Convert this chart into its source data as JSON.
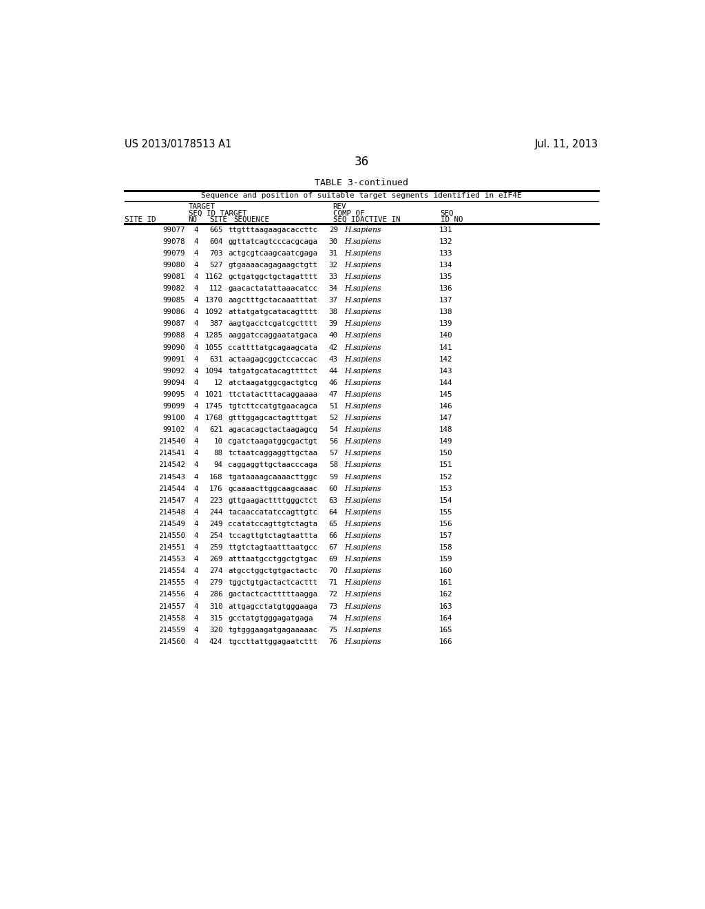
{
  "header_left": "US 2013/0178513 A1",
  "header_right": "Jul. 11, 2013",
  "page_number": "36",
  "table_title": "TABLE 3-continued",
  "table_subtitle": "Sequence and position of suitable target segments identified in eIF4E",
  "rows": [
    [
      "99077",
      "4",
      "665",
      "ttgtttaagaagacaccttc",
      "29",
      "H.",
      "sapiens",
      "131"
    ],
    [
      "99078",
      "4",
      "604",
      "ggttatcagtcccacgcaga",
      "30",
      "H.",
      "sapiens",
      "132"
    ],
    [
      "99079",
      "4",
      "703",
      "actgcgtcaagcaatcgaga",
      "31",
      "H.",
      "sapiens",
      "133"
    ],
    [
      "99080",
      "4",
      "527",
      "gtgaaaacagagaagctgtt",
      "32",
      "H.",
      "sapiens",
      "134"
    ],
    [
      "99081",
      "4",
      "1162",
      "gctgatggctgctagatttt",
      "33",
      "H.",
      "sapiens",
      "135"
    ],
    [
      "99082",
      "4",
      "112",
      "gaacactatattaaacatcc",
      "34",
      "H.",
      "sapiens",
      "136"
    ],
    [
      "99085",
      "4",
      "1370",
      "aagctttgctacaaatttat",
      "37",
      "H.",
      "sapiens",
      "137"
    ],
    [
      "99086",
      "4",
      "1092",
      "attatgatgcatacagtttt",
      "38",
      "H.",
      "sapiens",
      "138"
    ],
    [
      "99087",
      "4",
      "387",
      "aagtgacctcgatcgctttt",
      "39",
      "H.",
      "sapiens",
      "139"
    ],
    [
      "99088",
      "4",
      "1285",
      "aaggatccaggaatatgaca",
      "40",
      "H.",
      "sapiens",
      "140"
    ],
    [
      "99090",
      "4",
      "1055",
      "ccattttatgcagaagcata",
      "42",
      "H.",
      "sapiens",
      "141"
    ],
    [
      "99091",
      "4",
      "631",
      "actaagagcggctccaccac",
      "43",
      "H.",
      "sapiens",
      "142"
    ],
    [
      "99092",
      "4",
      "1094",
      "tatgatgcatacagttttct",
      "44",
      "H.",
      "sapiens",
      "143"
    ],
    [
      "99094",
      "4",
      "12",
      "atctaagatggcgactgtcg",
      "46",
      "H.",
      "sapiens",
      "144"
    ],
    [
      "99095",
      "4",
      "1021",
      "ttctatactttacaggaaaa",
      "47",
      "H.",
      "sapiens",
      "145"
    ],
    [
      "99099",
      "4",
      "1745",
      "tgtcttccatgtgaacagca",
      "51",
      "H.",
      "sapiens",
      "146"
    ],
    [
      "99100",
      "4",
      "1768",
      "gtttggagcactagtttgat",
      "52",
      "H.",
      "sapiens",
      "147"
    ],
    [
      "99102",
      "4",
      "621",
      "agacacagctactaagagcg",
      "54",
      "H.",
      "sapiens",
      "148"
    ],
    [
      "214540",
      "4",
      "10",
      "cgatctaagatggcgactgt",
      "56",
      "H.",
      "sapiens",
      "149"
    ],
    [
      "214541",
      "4",
      "88",
      "tctaatcaggaggttgctaa",
      "57",
      "H.",
      "sapiens",
      "150"
    ],
    [
      "214542",
      "4",
      "94",
      "caggaggttgctaacccaga",
      "58",
      "H.",
      "sapiens",
      "151"
    ],
    [
      "214543",
      "4",
      "168",
      "tgataaaagcaaaacttggc",
      "59",
      "H.",
      "sapiens",
      "152"
    ],
    [
      "214544",
      "4",
      "176",
      "gcaaaacttggcaagcaaac",
      "60",
      "H.",
      "sapiens",
      "153"
    ],
    [
      "214547",
      "4",
      "223",
      "gttgaagacttttgggctct",
      "63",
      "H.",
      "sapiens",
      "154"
    ],
    [
      "214548",
      "4",
      "244",
      "tacaaccatatccagttgtc",
      "64",
      "H.",
      "sapiens",
      "155"
    ],
    [
      "214549",
      "4",
      "249",
      "ccatatccagttgtctagta",
      "65",
      "H.",
      "sapiens",
      "156"
    ],
    [
      "214550",
      "4",
      "254",
      "tccagttgtctagtaattta",
      "66",
      "H.",
      "sapiens",
      "157"
    ],
    [
      "214551",
      "4",
      "259",
      "ttgtctagtaatttaatgcc",
      "67",
      "H.",
      "sapiens",
      "158"
    ],
    [
      "214553",
      "4",
      "269",
      "atttaatgcctggctgtgac",
      "69",
      "H.",
      "sapiens",
      "159"
    ],
    [
      "214554",
      "4",
      "274",
      "atgcctggctgtgactactc",
      "70",
      "H.",
      "sapiens",
      "160"
    ],
    [
      "214555",
      "4",
      "279",
      "tggctgtgactactcacttt",
      "71",
      "H.",
      "sapiens",
      "161"
    ],
    [
      "214556",
      "4",
      "286",
      "gactactcactttttaagga",
      "72",
      "H.",
      "sapiens",
      "162"
    ],
    [
      "214557",
      "4",
      "310",
      "attgagcctatgtgggaaga",
      "73",
      "H.",
      "sapiens",
      "163"
    ],
    [
      "214558",
      "4",
      "315",
      "gcctatgtgggagatgaga",
      "74",
      "H.",
      "sapiens",
      "164"
    ],
    [
      "214559",
      "4",
      "320",
      "tgtgggaagatgagaaaaac",
      "75",
      "H.",
      "sapiens",
      "165"
    ],
    [
      "214560",
      "4",
      "424",
      "tgccttattggagaatcttt",
      "76",
      "H.",
      "sapiens",
      "166"
    ]
  ],
  "bg_color": "#ffffff",
  "text_color": "#000000",
  "fs_header": 10.5,
  "fs_page_num": 12,
  "fs_table_title": 9.5,
  "fs_subtitle": 8.0,
  "fs_col_header": 7.8,
  "fs_data": 7.8
}
